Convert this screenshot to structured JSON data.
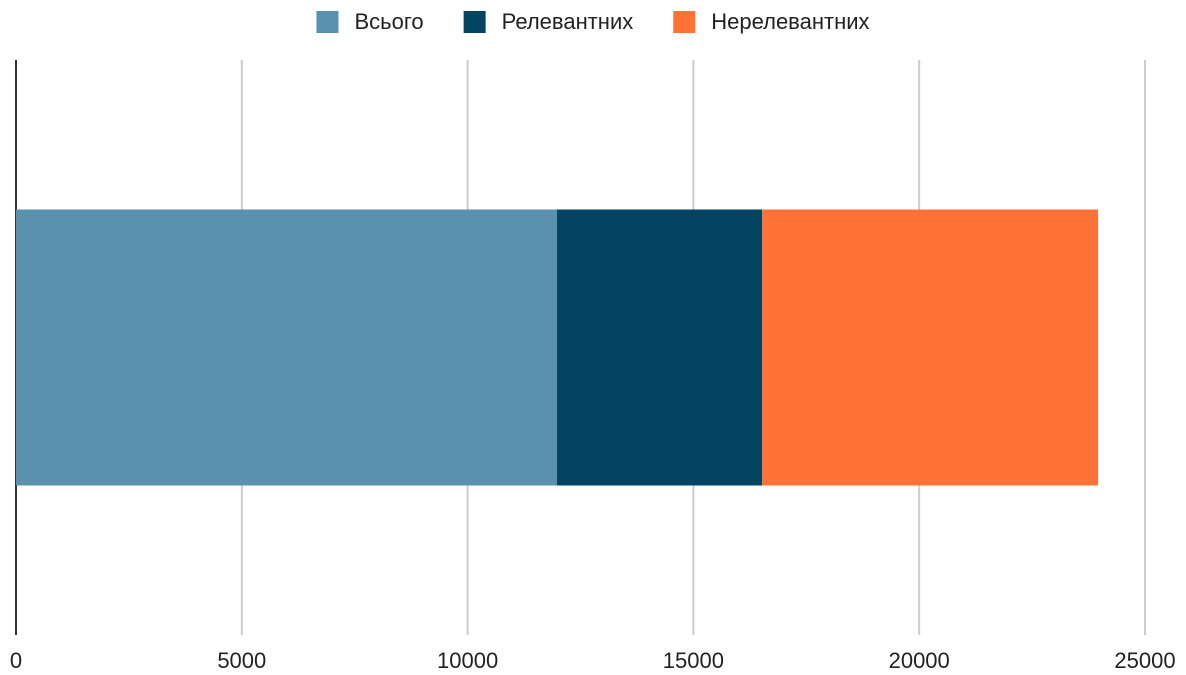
{
  "chart_data": {
    "type": "stacked_barh",
    "categories": [
      null
    ],
    "series": [
      {
        "name": "Всього",
        "color": "#5a91ae",
        "values": [
          11980
        ]
      },
      {
        "name": "Релевантних",
        "color": "#024462",
        "values": [
          4540
        ]
      },
      {
        "name": "Нерелевантних",
        "color": "#ff7134",
        "values": [
          7440
        ]
      }
    ],
    "xlim": [
      0,
      25000
    ],
    "xticks": [
      0,
      5000,
      10000,
      15000,
      20000,
      25000
    ],
    "grid": true,
    "legend": "top"
  }
}
